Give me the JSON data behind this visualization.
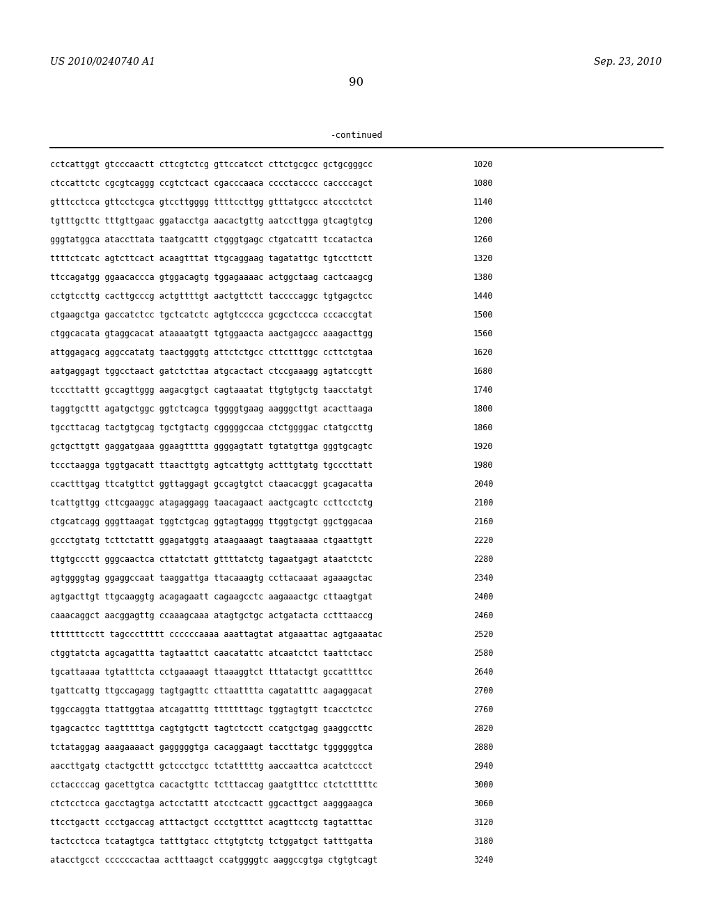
{
  "header_left": "US 2010/0240740 A1",
  "header_right": "Sep. 23, 2010",
  "page_number": "90",
  "continued_label": "-continued",
  "background_color": "#ffffff",
  "text_color": "#000000",
  "font_size": 8.5,
  "header_font_size": 10,
  "sequences": [
    [
      "cctcattggt gtcccaactt cttcgtctcg gttccatcct cttctgcgcc gctgcgggcc",
      "1020"
    ],
    [
      "ctccattctc cgcgtcaggg ccgtctcact cgacccaaca cccctacccc caccccagct",
      "1080"
    ],
    [
      "gtttcctcca gttcctcgca gtccttgggg ttttccttgg gtttatgccc atccctctct",
      "1140"
    ],
    [
      "tgtttgcttc tttgttgaac ggatacctga aacactgttg aatccttgga gtcagtgtcg",
      "1200"
    ],
    [
      "gggtatggca ataccttata taatgcattt ctgggtgagc ctgatcattt tccatactca",
      "1260"
    ],
    [
      "ttttctcatc agtcttcact acaagtttat ttgcaggaag tagatattgc tgtccttctt",
      "1320"
    ],
    [
      "ttccagatgg ggaacaccca gtggacagtg tggagaaaac actggctaag cactcaagcg",
      "1380"
    ],
    [
      "cctgtccttg cacttgcccg actgttttgt aactgttctt taccccaggc tgtgagctcc",
      "1440"
    ],
    [
      "ctgaagctga gaccatctcc tgctcatctc agtgtcccca gcgcctccca cccaccgtat",
      "1500"
    ],
    [
      "ctggcacata gtaggcacat ataaaatgtt tgtggaacta aactgagccc aaagacttgg",
      "1560"
    ],
    [
      "attggagacg aggccatatg taactgggtg attctctgcc cttctttggc ccttctgtaa",
      "1620"
    ],
    [
      "aatgaggagt tggcctaact gatctcttaa atgcactact ctccgaaagg agtatccgtt",
      "1680"
    ],
    [
      "tcccttattt gccagttggg aagacgtgct cagtaaatat ttgtgtgctg taacctatgt",
      "1740"
    ],
    [
      "taggtgcttt agatgctggc ggtctcagca tggggtgaag aagggcttgt acacttaaga",
      "1800"
    ],
    [
      "tgccttacag tactgtgcag tgctgtactg cgggggccaa ctctggggac ctatgccttg",
      "1860"
    ],
    [
      "gctgcttgtt gaggatgaaa ggaagtttta ggggagtatt tgtatgttga gggtgcagtc",
      "1920"
    ],
    [
      "tccctaagga tggtgacatt ttaacttgtg agtcattgtg actttgtatg tgcccttatt",
      "1980"
    ],
    [
      "ccactttgag ttcatgttct ggttaggagt gccagtgtct ctaacacggt gcagacatta",
      "2040"
    ],
    [
      "tcattgttgg cttcgaaggc atagaggagg taacagaact aactgcagtc ccttcctctg",
      "2100"
    ],
    [
      "ctgcatcagg gggttaagat tggtctgcag ggtagtaggg ttggtgctgt ggctggacaa",
      "2160"
    ],
    [
      "gccctgtatg tcttctattt ggagatggtg ataagaaagt taagtaaaaa ctgaattgtt",
      "2220"
    ],
    [
      "ttgtgccctt gggcaactca cttatctatt gttttatctg tagaatgagt ataatctctc",
      "2280"
    ],
    [
      "agtggggtag ggaggccaat taaggattga ttacaaagtg ccttacaaat agaaagctac",
      "2340"
    ],
    [
      "agtgacttgt ttgcaaggtg acagagaatt cagaagcctc aagaaactgc cttaagtgat",
      "2400"
    ],
    [
      "caaacaggct aacggagttg ccaaagcaaa atagtgctgc actgatacta cctttaaccg",
      "2460"
    ],
    [
      "tttttttcctt tagcccttttt ccccccaaaa aaattagtat atgaaattac agtgaaatac",
      "2520"
    ],
    [
      "ctggtatcta agcagattta tagtaattct caacatattc atcaatctct taattctacc",
      "2580"
    ],
    [
      "tgcattaaaa tgtatttcta cctgaaaagt ttaaaggtct tttatactgt gccattttcc",
      "2640"
    ],
    [
      "tgattcattg ttgccagagg tagtgagttc cttaatttta cagatatttc aagaggacat",
      "2700"
    ],
    [
      "tggccaggta ttattggtaa atcagatttg tttttttagc tggtagtgtt tcacctctcc",
      "2760"
    ],
    [
      "tgagcactcc tagtttttga cagtgtgctt tagtctcctt ccatgctgag gaaggccttc",
      "2820"
    ],
    [
      "tctataggag aaagaaaact gagggggtga cacaggaagt taccttatgc tggggggtca",
      "2880"
    ],
    [
      "aaccttgatg ctactgcttt gctccctgcc tctatttttg aaccaattca acatctccct",
      "2940"
    ],
    [
      "cctaccccag gacettgtca cacactgttc tctttaccag gaatgtttcc ctctctttttc",
      "3000"
    ],
    [
      "ctctcctcca gacctagtga actcctattt atcctcactt ggcacttgct aagggaagca",
      "3060"
    ],
    [
      "ttcctgactt ccctgaccag atttactgct ccctgtttct acagttcctg tagtatttac",
      "3120"
    ],
    [
      "tactcctcca tcatagtgca tatttgtacc cttgtgtctg tctggatgct tatttgatta",
      "3180"
    ],
    [
      "atacctgcct ccccccactaa actttaagct ccatggggtc aaggccgtga ctgtgtcagt",
      "3240"
    ]
  ]
}
